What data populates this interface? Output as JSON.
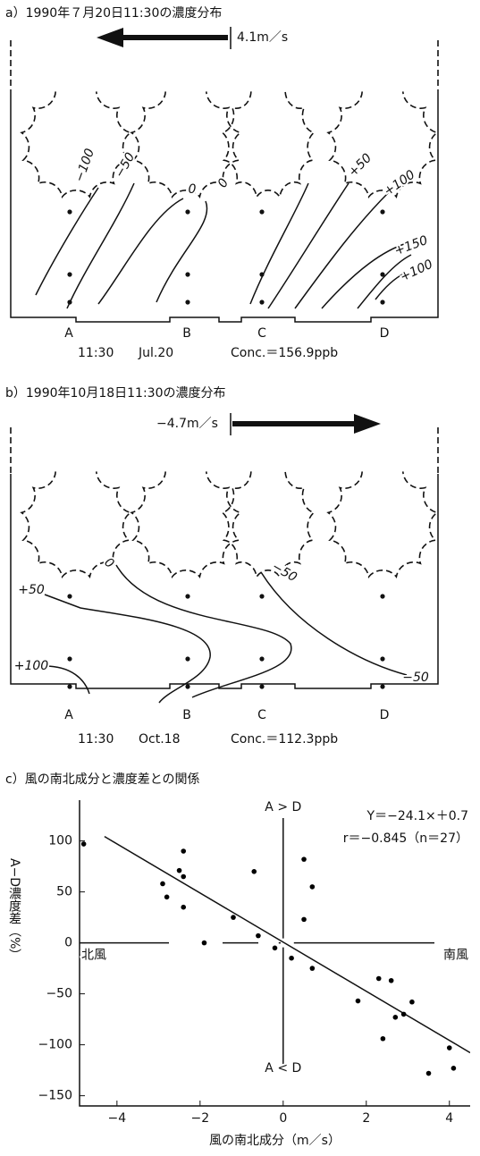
{
  "panel_a": {
    "title": "a）1990年７月20日11:30の濃度分布",
    "wind": "4.1m／s",
    "contours": [
      "−100",
      "−50",
      "0",
      "0",
      "+50",
      "+100",
      "+150",
      "+100"
    ],
    "sites": [
      "A",
      "B",
      "C",
      "D"
    ],
    "time": "11:30",
    "date": "Jul.20",
    "conc": "Conc.＝156.9ppb"
  },
  "panel_b": {
    "title": "b）1990年10月18日11:30の濃度分布",
    "wind": "−4.7m／s",
    "contours": [
      "0",
      "−50",
      "+50",
      "+100",
      "−50"
    ],
    "sites": [
      "A",
      "B",
      "C",
      "D"
    ],
    "time": "11:30",
    "date": "Oct.18",
    "conc": "Conc.＝112.3ppb"
  },
  "chart_data": {
    "type": "scatter",
    "title": "c）風の南北成分と濃度差との関係",
    "x_label": "風の南北成分（m／s）",
    "y_label": "A−D濃度差（%）",
    "color": "#000000",
    "annotations": [
      "A > D",
      "A < D",
      "Y＝−24.1×＋0.7",
      "r＝−0.845（n＝27）",
      "北風",
      "南風"
    ],
    "fit": {
      "slope": -24.1,
      "intercept": 0.7
    },
    "x": [
      -4.8,
      -2.9,
      -2.8,
      -2.5,
      -2.4,
      -2.4,
      -2.4,
      -1.9,
      -1.2,
      -0.7,
      -0.6,
      -0.2,
      0.2,
      0.5,
      0.5,
      0.7,
      0.7,
      1.8,
      2.3,
      2.4,
      2.6,
      2.7,
      2.9,
      3.1,
      3.5,
      4.0,
      4.1
    ],
    "values": [
      97,
      58,
      45,
      71,
      90,
      65,
      35,
      0,
      25,
      70,
      7,
      -5,
      -15,
      82,
      23,
      55,
      -25,
      -57,
      -35,
      -94,
      -37,
      -73,
      -70,
      -58,
      -128,
      -103,
      -123
    ],
    "xlim": [
      -4.9,
      4.5
    ],
    "ylim": [
      -160,
      140
    ],
    "xticks": [
      {
        "value": -4,
        "label": "−4"
      },
      {
        "value": -2,
        "label": "−2"
      },
      0,
      2,
      4
    ],
    "yticks": [
      100,
      50,
      0,
      {
        "value": -50,
        "label": "−50"
      },
      {
        "value": -100,
        "label": "−100"
      },
      {
        "value": -150,
        "label": "−150"
      }
    ]
  }
}
